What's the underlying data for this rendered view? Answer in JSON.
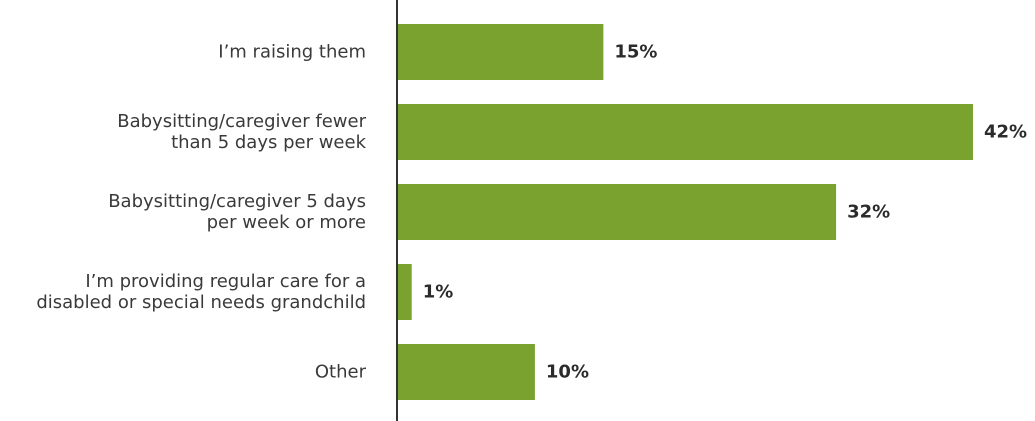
{
  "chart_data": {
    "type": "bar",
    "orientation": "horizontal",
    "categories": [
      [
        "I’m raising them"
      ],
      [
        "Babysitting/caregiver fewer",
        "than 5 days per week"
      ],
      [
        "Babysitting/caregiver 5 days",
        "per week or more"
      ],
      [
        "I’m providing regular care for a",
        "disabled or special needs grandchild"
      ],
      [
        "Other"
      ]
    ],
    "values": [
      15,
      42,
      32,
      1,
      10
    ],
    "value_labels": [
      "15%",
      "42%",
      "32%",
      "1%",
      "10%"
    ],
    "title": "",
    "xlabel": "",
    "ylabel": "",
    "xlim": [
      0,
      42
    ],
    "grid": false,
    "legend": "none",
    "bar_color": "#7aa22f",
    "axis_color": "#333333"
  }
}
